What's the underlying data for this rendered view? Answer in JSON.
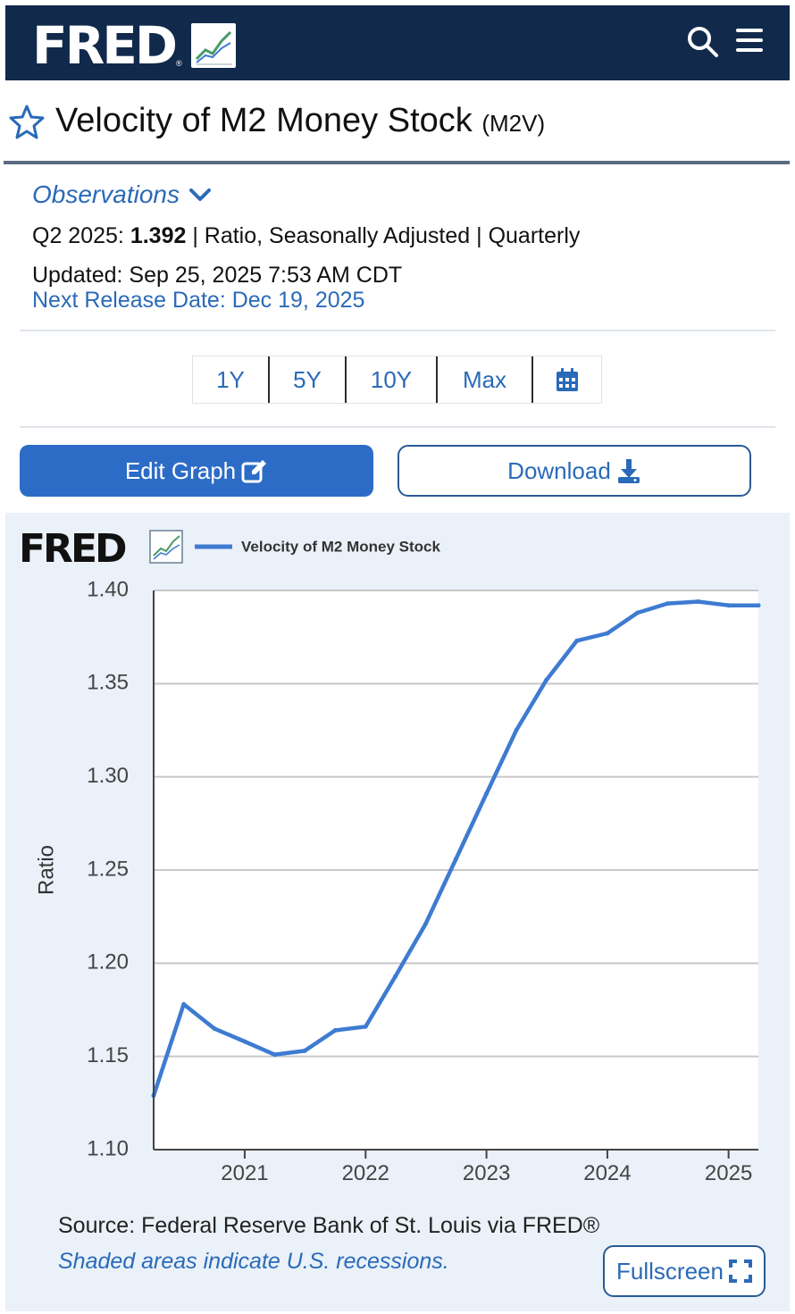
{
  "header": {
    "logo_text": "FRED",
    "logo_reg": "®",
    "icons": [
      "search-icon",
      "menu-icon"
    ],
    "background": "#112a4c"
  },
  "series": {
    "title": "Velocity of M2 Money Stock",
    "id": "(M2V)"
  },
  "observations": {
    "toggle_label": "Observations",
    "period": "Q2 2025:",
    "value": "1.392",
    "details": "| Ratio, Seasonally Adjusted | Quarterly",
    "updated": "Updated: Sep 25, 2025 7:53 AM CDT",
    "next_release": "Next Release Date: Dec 19, 2025"
  },
  "range_buttons": [
    "1Y",
    "5Y",
    "10Y",
    "Max"
  ],
  "actions": {
    "edit_label": "Edit Graph",
    "download_label": "Download"
  },
  "chart_data": {
    "type": "line",
    "logo_text": "FRED",
    "legend": "Velocity of M2 Money Stock",
    "ylabel": "Ratio",
    "ylim": [
      1.1,
      1.4
    ],
    "yticks": [
      "1.10",
      "1.15",
      "1.20",
      "1.25",
      "1.30",
      "1.35",
      "1.40"
    ],
    "xticks": [
      "2021",
      "2022",
      "2023",
      "2024",
      "2025"
    ],
    "grid": true,
    "line_color": "#3e7bd1",
    "series": [
      {
        "name": "Velocity of M2 Money Stock",
        "x": [
          "2020-04-01",
          "2020-07-01",
          "2020-10-01",
          "2021-01-01",
          "2021-04-01",
          "2021-07-01",
          "2021-10-01",
          "2022-01-01",
          "2022-04-01",
          "2022-07-01",
          "2022-10-01",
          "2023-01-01",
          "2023-04-01",
          "2023-07-01",
          "2023-10-01",
          "2024-01-01",
          "2024-04-01",
          "2024-07-01",
          "2024-10-01",
          "2025-01-01",
          "2025-04-01"
        ],
        "values": [
          1.129,
          1.178,
          1.165,
          1.158,
          1.151,
          1.153,
          1.164,
          1.166,
          1.193,
          1.221,
          1.256,
          1.291,
          1.325,
          1.352,
          1.373,
          1.377,
          1.388,
          1.393,
          1.394,
          1.392,
          1.392
        ]
      }
    ]
  },
  "footer": {
    "source": "Source: Federal Reserve Bank of St. Louis via FRED®",
    "recession_note": "Shaded areas indicate U.S. recessions.",
    "fullscreen_label": "Fullscreen"
  }
}
